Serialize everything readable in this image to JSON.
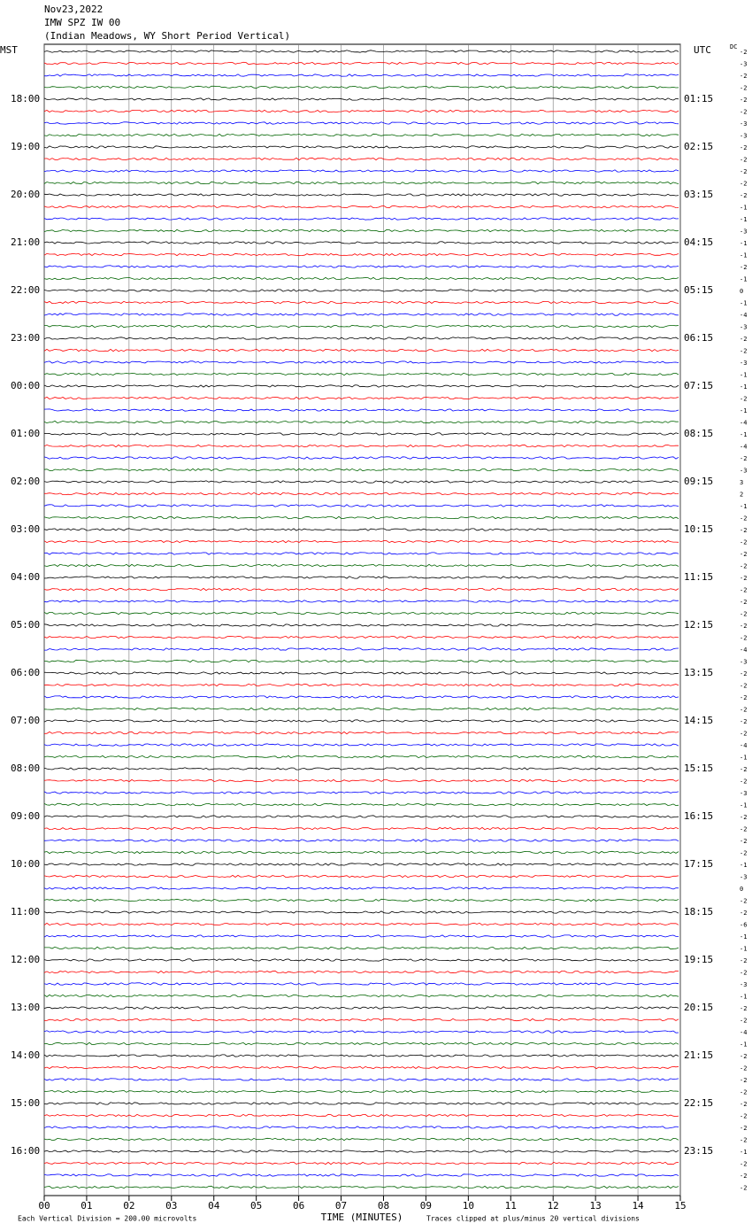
{
  "header": {
    "date": "Nov23,2022",
    "station": "IMW SPZ IW 00",
    "description": "(Indian Meadows, WY Short Period Vertical)"
  },
  "trace_colors": [
    "#000000",
    "#ff0000",
    "#0000ff",
    "#006400"
  ],
  "left_axis": {
    "title": "MST",
    "labels": [
      "18:00",
      "19:00",
      "20:00",
      "21:00",
      "22:00",
      "23:00",
      "00:00",
      "01:00",
      "02:00",
      "03:00",
      "04:00",
      "05:00",
      "06:00",
      "07:00",
      "08:00",
      "09:00",
      "10:00",
      "11:00",
      "12:00",
      "13:00",
      "14:00",
      "15:00",
      "16:00"
    ]
  },
  "right_axis": {
    "title": "UTC",
    "labels": [
      "01:15",
      "02:15",
      "03:15",
      "04:15",
      "05:15",
      "06:15",
      "07:15",
      "08:15",
      "09:15",
      "10:15",
      "11:15",
      "12:15",
      "13:15",
      "14:15",
      "15:15",
      "16:15",
      "17:15",
      "18:15",
      "19:15",
      "20:15",
      "21:15",
      "22:15",
      "23:15"
    ]
  },
  "dc": {
    "title": "DC",
    "values": [
      -2,
      -3,
      -2,
      -2,
      -2,
      -2,
      -3,
      -3,
      -2,
      -2,
      -2,
      -2,
      -2,
      -1,
      -1,
      -3,
      -1,
      -1,
      -2,
      -1,
      0,
      -1,
      -4,
      -3,
      -2,
      -2,
      -3,
      -1,
      -1,
      -2,
      -1,
      -4,
      -1,
      -4,
      -2,
      -3,
      3,
      2,
      -1,
      -2,
      -2,
      -2,
      -2,
      -2,
      -2,
      -2,
      -2,
      -2,
      -2,
      -2,
      -4,
      -3,
      -2,
      -2,
      -2,
      -2,
      -2,
      -2,
      -4,
      -1,
      -2,
      -2,
      -3,
      -1,
      -2,
      -2,
      -2,
      -2,
      -1,
      -3,
      0,
      -2,
      -2,
      -6,
      -1,
      -1,
      -2,
      -2,
      -3,
      -1,
      -2,
      -2,
      -4,
      -1,
      -2,
      -2,
      -2,
      -2,
      -2,
      -2,
      -2,
      -2,
      -1,
      -2,
      -2,
      -2
    ]
  },
  "x_axis": {
    "title": "TIME (MINUTES)",
    "xlim": [
      0,
      15
    ],
    "xticks": [
      {
        "value": 0,
        "label": "00"
      },
      {
        "value": 1,
        "label": "01"
      },
      {
        "value": 2,
        "label": "02"
      },
      {
        "value": 3,
        "label": "03"
      },
      {
        "value": 4,
        "label": "04"
      },
      {
        "value": 5,
        "label": "05"
      },
      {
        "value": 6,
        "label": "06"
      },
      {
        "value": 7,
        "label": "07"
      },
      {
        "value": 8,
        "label": "08"
      },
      {
        "value": 9,
        "label": "09"
      },
      10,
      11,
      12,
      13,
      14,
      15
    ]
  },
  "footer": {
    "scale_note": "Each Vertical Division =  200.00 microvolts",
    "clip_note": "Traces clipped at plus/minus 20 vertical divisions"
  }
}
